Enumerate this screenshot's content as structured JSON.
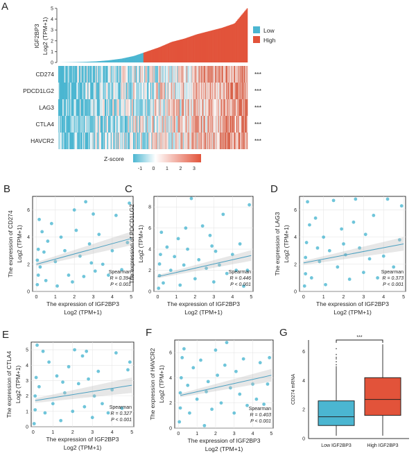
{
  "colors": {
    "low": "#4bb6d1",
    "high": "#e2533a",
    "point": "#4bb6d1",
    "trend": "#4a9fc0"
  },
  "panelA": {
    "letter": "A",
    "ylabel_line1": "IGF2BP3",
    "ylabel_line2": "Log2 (TPM+1)",
    "yticks": [
      "0",
      "1",
      "2",
      "3",
      "4",
      "5"
    ],
    "legend": [
      {
        "label": "Low",
        "color": "#4bb6d1"
      },
      {
        "label": "High",
        "color": "#e2533a"
      }
    ],
    "genes": [
      "CD274",
      "PDCD1LG2",
      "LAG3",
      "CTLA4",
      "HAVCR2"
    ],
    "significance": [
      "***",
      "***",
      "***",
      "***",
      "***"
    ],
    "zscore_label": "Z-score",
    "zscore_ticks": [
      "-1",
      "0",
      "1",
      "2",
      "3"
    ],
    "sorted_expression_quantiles": [
      0,
      0.02,
      0.05,
      0.1,
      0.2,
      0.35,
      0.6,
      1.0,
      1.4,
      1.9,
      2.2,
      2.6,
      2.9,
      3.2,
      3.6,
      5.0
    ],
    "low_fraction": 0.45
  },
  "chart_data": [
    {
      "type": "scatter",
      "letter": "B",
      "ylabel": "The expression of CD274",
      "ylabel_unit": "Log2 (TPM+1)",
      "xlabel": "The expression of IGF2BP3",
      "xlabel_unit": "Log2 (TPM+1)",
      "xlim": [
        -0.2,
        5.1
      ],
      "ylim": [
        0,
        7
      ],
      "xticks": [
        0,
        1,
        2,
        3,
        4,
        5
      ],
      "yticks": [
        0,
        2,
        4,
        6
      ],
      "stat": "Spearman",
      "r_label": "R = 0.394",
      "p_label": "P < 0.001",
      "trend": [
        [
          0,
          2.0
        ],
        [
          5,
          3.9
        ]
      ],
      "points": [
        [
          0.05,
          0.5
        ],
        [
          0.1,
          1.2
        ],
        [
          0.05,
          2.3
        ],
        [
          0.1,
          3.1
        ],
        [
          0.15,
          5.3
        ],
        [
          0.2,
          1.8
        ],
        [
          0.3,
          4.4
        ],
        [
          0.5,
          0.8
        ],
        [
          0.6,
          3.7
        ],
        [
          0.8,
          5.0
        ],
        [
          1.0,
          2.2
        ],
        [
          1.1,
          0.4
        ],
        [
          1.3,
          4.0
        ],
        [
          1.5,
          3.0
        ],
        [
          1.7,
          1.2
        ],
        [
          2.0,
          6.0
        ],
        [
          2.1,
          4.5
        ],
        [
          2.3,
          2.6
        ],
        [
          2.5,
          1.1
        ],
        [
          2.6,
          6.6
        ],
        [
          2.8,
          3.5
        ],
        [
          3.0,
          5.7
        ],
        [
          3.1,
          1.5
        ],
        [
          3.3,
          4.2
        ],
        [
          3.5,
          2.0
        ],
        [
          3.8,
          1.2
        ],
        [
          4.0,
          3.0
        ],
        [
          4.2,
          5.6
        ],
        [
          4.5,
          1.6
        ],
        [
          4.8,
          3.6
        ],
        [
          4.9,
          6.5
        ],
        [
          1.9,
          0.7
        ],
        [
          0.4,
          2.9
        ],
        [
          2.9,
          2.1
        ]
      ]
    },
    {
      "type": "scatter",
      "letter": "C",
      "ylabel": "The expression of PDCD1LG2",
      "ylabel_unit": "Log2 (TPM+1)",
      "xlabel": "The expression of IGF2BP3",
      "xlabel_unit": "Log2 (TPM+1)",
      "xlim": [
        -0.2,
        5.1
      ],
      "ylim": [
        0,
        9
      ],
      "xticks": [
        0,
        1,
        2,
        3,
        4,
        5
      ],
      "yticks": [
        0,
        2,
        4,
        6,
        8
      ],
      "stat": "Spearman",
      "r_label": "R = 0.446",
      "p_label": "P < 0.001",
      "trend": [
        [
          0,
          1.4
        ],
        [
          5,
          3.4
        ]
      ],
      "points": [
        [
          0.05,
          0.3
        ],
        [
          0.1,
          1.5
        ],
        [
          0.1,
          2.6
        ],
        [
          0.15,
          3.5
        ],
        [
          0.2,
          5.6
        ],
        [
          0.3,
          0.8
        ],
        [
          0.5,
          4.2
        ],
        [
          0.7,
          2.0
        ],
        [
          0.9,
          3.3
        ],
        [
          1.1,
          5.0
        ],
        [
          1.2,
          0.6
        ],
        [
          1.4,
          2.5
        ],
        [
          1.6,
          4.0
        ],
        [
          1.8,
          8.8
        ],
        [
          2.0,
          1.2
        ],
        [
          2.2,
          3.0
        ],
        [
          2.4,
          6.2
        ],
        [
          2.6,
          2.2
        ],
        [
          2.8,
          5.3
        ],
        [
          3.0,
          0.9
        ],
        [
          3.1,
          3.8
        ],
        [
          3.3,
          2.5
        ],
        [
          3.5,
          7.3
        ],
        [
          3.7,
          1.7
        ],
        [
          4.0,
          3.5
        ],
        [
          4.2,
          2.0
        ],
        [
          4.4,
          4.5
        ],
        [
          4.6,
          0.5
        ],
        [
          4.8,
          2.0
        ],
        [
          4.9,
          8.2
        ],
        [
          1.5,
          6.0
        ],
        [
          2.9,
          4.3
        ]
      ]
    },
    {
      "type": "scatter",
      "letter": "D",
      "ylabel": "The expression of LAG3",
      "ylabel_unit": "Log2 (TPM+1)",
      "xlabel": "The expression of IGF2BP3",
      "xlabel_unit": "Log2 (TPM+1)",
      "xlim": [
        -0.2,
        5.1
      ],
      "ylim": [
        0,
        7
      ],
      "xticks": [
        0,
        1,
        2,
        3,
        4,
        5
      ],
      "yticks": [
        0,
        2,
        4,
        6
      ],
      "stat": "Spearman",
      "r_label": "R = 0.373",
      "p_label": "P < 0.001",
      "trend": [
        [
          0,
          2.1
        ],
        [
          5,
          3.5
        ]
      ],
      "points": [
        [
          0.05,
          0.4
        ],
        [
          0.1,
          1.3
        ],
        [
          0.1,
          2.5
        ],
        [
          0.15,
          3.6
        ],
        [
          0.2,
          6.6
        ],
        [
          0.3,
          4.9
        ],
        [
          0.4,
          1.0
        ],
        [
          0.6,
          5.4
        ],
        [
          0.8,
          2.2
        ],
        [
          1.0,
          4.0
        ],
        [
          1.1,
          0.5
        ],
        [
          1.3,
          3.0
        ],
        [
          1.5,
          6.7
        ],
        [
          1.7,
          1.8
        ],
        [
          1.9,
          4.6
        ],
        [
          2.1,
          2.7
        ],
        [
          2.3,
          0.9
        ],
        [
          2.5,
          5.1
        ],
        [
          2.6,
          6.8
        ],
        [
          2.8,
          3.2
        ],
        [
          3.0,
          1.4
        ],
        [
          3.1,
          4.2
        ],
        [
          3.3,
          2.4
        ],
        [
          3.5,
          5.6
        ],
        [
          3.7,
          1.0
        ],
        [
          4.0,
          2.6
        ],
        [
          4.2,
          6.8
        ],
        [
          4.5,
          1.8
        ],
        [
          4.8,
          3.8
        ],
        [
          4.9,
          6.3
        ],
        [
          2.0,
          3.5
        ],
        [
          0.7,
          3.2
        ]
      ]
    },
    {
      "type": "scatter",
      "letter": "E",
      "ylabel": "The expression of CTLA4",
      "ylabel_unit": "Log2 (TPM+1)",
      "xlabel": "The expression of IGF2BP3",
      "xlabel_unit": "Log2 (TPM+1)",
      "xlim": [
        -0.1,
        5.1
      ],
      "ylim": [
        0,
        5.5
      ],
      "xticks": [
        0,
        1,
        2,
        3,
        4,
        5
      ],
      "yticks": [
        0,
        1,
        2,
        3,
        4,
        5
      ],
      "stat": "Spearman",
      "r_label": "R = 0.327",
      "p_label": "P < 0.001",
      "trend": [
        [
          0.1,
          1.7
        ],
        [
          5,
          2.7
        ]
      ],
      "points": [
        [
          0.05,
          0.2
        ],
        [
          0.1,
          1.1
        ],
        [
          0.1,
          2.0
        ],
        [
          0.15,
          3.2
        ],
        [
          0.2,
          5.3
        ],
        [
          0.3,
          2.6
        ],
        [
          0.5,
          4.9
        ],
        [
          0.6,
          0.9
        ],
        [
          0.8,
          4.2
        ],
        [
          1.0,
          1.5
        ],
        [
          1.2,
          3.3
        ],
        [
          1.4,
          0.4
        ],
        [
          1.6,
          2.2
        ],
        [
          1.8,
          3.9
        ],
        [
          2.0,
          1.0
        ],
        [
          2.1,
          5.0
        ],
        [
          2.3,
          2.8
        ],
        [
          2.5,
          4.6
        ],
        [
          2.6,
          1.3
        ],
        [
          2.8,
          3.1
        ],
        [
          3.0,
          0.6
        ],
        [
          3.1,
          2.0
        ],
        [
          3.3,
          3.6
        ],
        [
          3.5,
          1.5
        ],
        [
          3.8,
          0.9
        ],
        [
          4.0,
          2.4
        ],
        [
          4.2,
          4.8
        ],
        [
          4.5,
          1.2
        ],
        [
          4.8,
          3.7
        ],
        [
          4.9,
          4.2
        ],
        [
          1.5,
          2.9
        ],
        [
          2.7,
          4.9
        ]
      ]
    },
    {
      "type": "scatter",
      "letter": "F",
      "ylabel": "The expression of HAVCR2",
      "ylabel_unit": "Log2 (TPM+1)",
      "xlabel": "The expression of IGF2BP3",
      "xlabel_unit": "Log2 (TPM+1)",
      "xlim": [
        -0.2,
        5.1
      ],
      "ylim": [
        0,
        7
      ],
      "xticks": [
        0,
        1,
        2,
        3,
        4,
        5
      ],
      "yticks": [
        0,
        2,
        4,
        6
      ],
      "stat": "Spearman",
      "r_label": "R = 0.403",
      "p_label": "P < 0.001",
      "trend": [
        [
          0.1,
          2.6
        ],
        [
          5,
          4.2
        ]
      ],
      "points": [
        [
          0.05,
          0.5
        ],
        [
          0.1,
          1.6
        ],
        [
          0.1,
          2.8
        ],
        [
          0.15,
          4.0
        ],
        [
          0.2,
          5.6
        ],
        [
          0.3,
          6.3
        ],
        [
          0.5,
          3.4
        ],
        [
          0.6,
          1.2
        ],
        [
          0.8,
          4.8
        ],
        [
          1.0,
          2.3
        ],
        [
          1.2,
          5.4
        ],
        [
          1.4,
          0.2
        ],
        [
          1.6,
          3.7
        ],
        [
          1.8,
          1.5
        ],
        [
          2.0,
          6.2
        ],
        [
          2.1,
          4.2
        ],
        [
          2.3,
          2.0
        ],
        [
          2.5,
          5.0
        ],
        [
          2.6,
          6.8
        ],
        [
          2.8,
          3.2
        ],
        [
          3.0,
          1.2
        ],
        [
          3.1,
          4.5
        ],
        [
          3.3,
          2.7
        ],
        [
          3.5,
          5.5
        ],
        [
          3.7,
          1.8
        ],
        [
          4.0,
          3.5
        ],
        [
          4.2,
          2.3
        ],
        [
          4.4,
          5.2
        ],
        [
          4.6,
          1.9
        ],
        [
          4.8,
          3.5
        ],
        [
          4.9,
          5.6
        ],
        [
          1.5,
          2.9
        ]
      ]
    },
    {
      "type": "box",
      "letter": "G",
      "ylabel": "CD274 mRNA",
      "ylim": [
        0,
        6.8
      ],
      "yticks": [
        0,
        2,
        4,
        6
      ],
      "categories": [
        "Low IGF2BP3",
        "High IGF2BP3"
      ],
      "boxes": [
        {
          "min": 0.2,
          "q1": 0.9,
          "median": 1.5,
          "q3": 2.6,
          "max": 5.0,
          "outliers": [
            5.1,
            5.3,
            5.5,
            5.6,
            5.8,
            6.2
          ],
          "color": "#4bb6d1"
        },
        {
          "min": 0.2,
          "q1": 1.6,
          "median": 2.7,
          "q3": 4.2,
          "max": 6.5,
          "outliers": [],
          "color": "#e2533a"
        }
      ],
      "significance": "***"
    }
  ]
}
